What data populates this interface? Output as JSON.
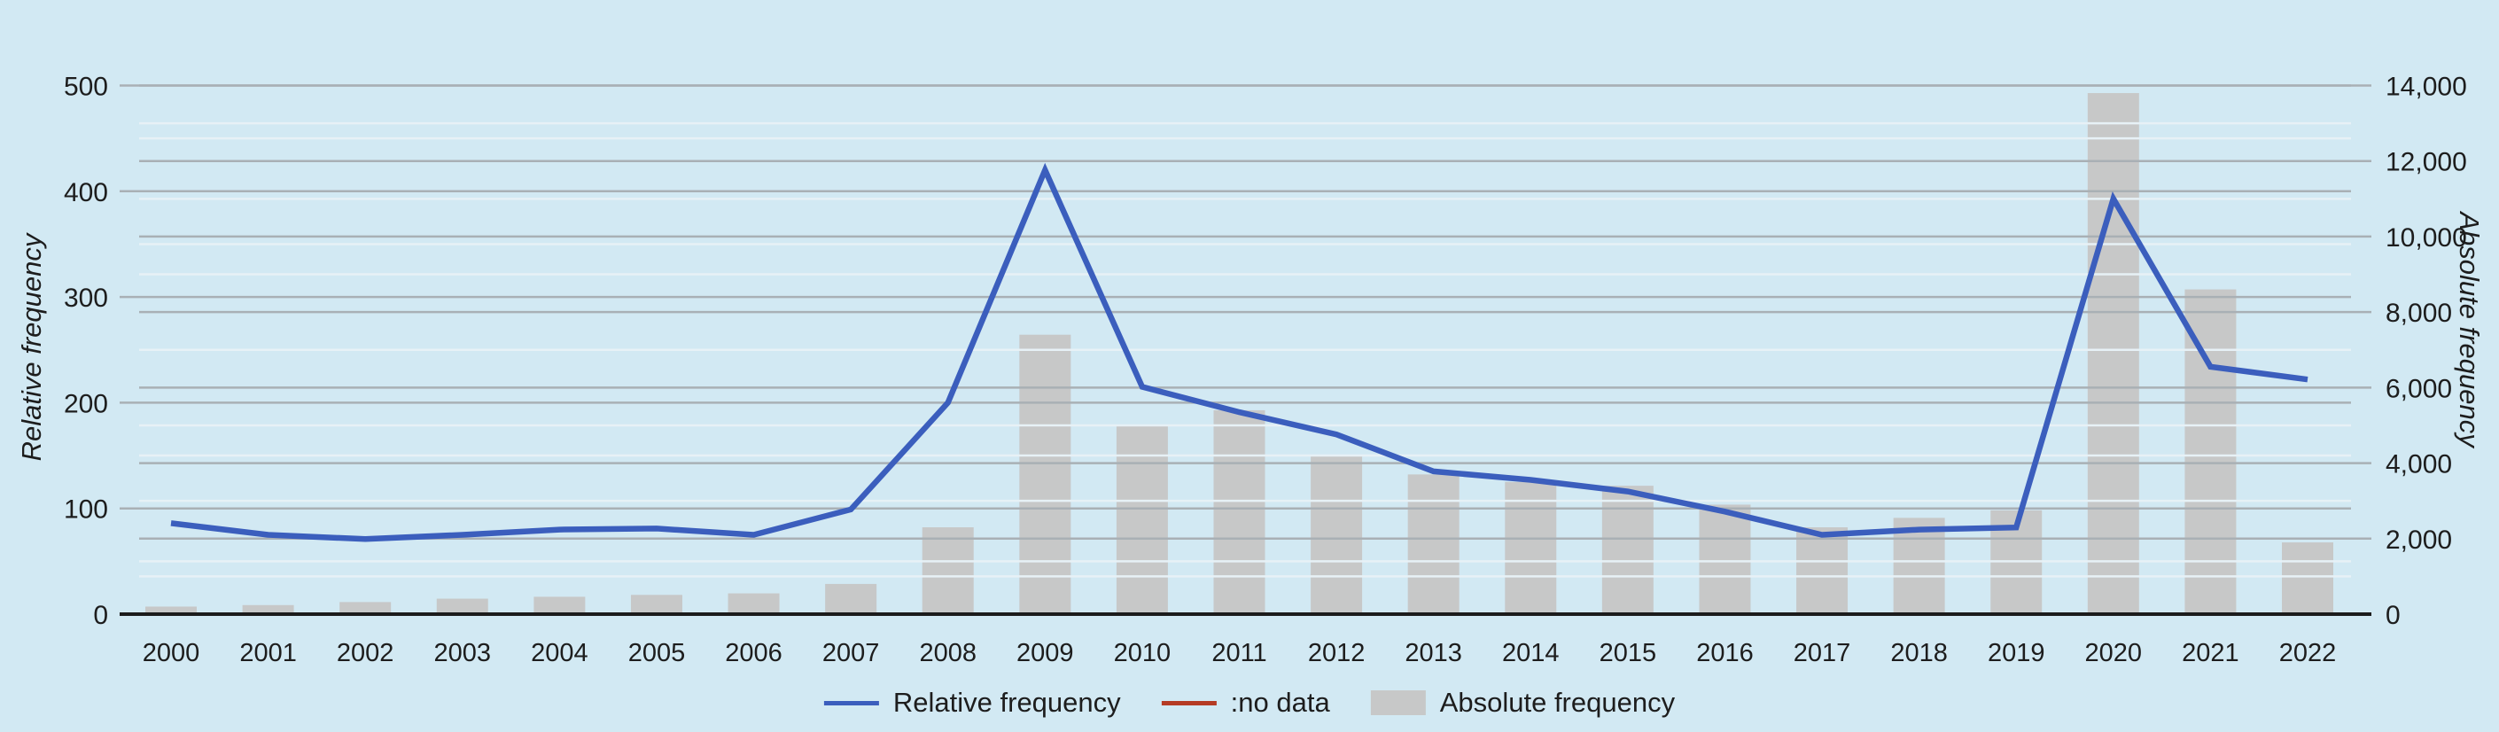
{
  "chart": {
    "background_color": "#d2e9f3",
    "axis_line_color": "#1c1c1c",
    "text_color": "#1d1d1d",
    "grid_major_color": "#a9b0b5",
    "grid_minor_color": "#e7f1f6",
    "tick_color": "#8f979c"
  },
  "chart_data": {
    "type": "combo",
    "categories": [
      "2000",
      "2001",
      "2002",
      "2003",
      "2004",
      "2005",
      "2006",
      "2007",
      "2008",
      "2009",
      "2010",
      "2011",
      "2012",
      "2013",
      "2014",
      "2015",
      "2016",
      "2017",
      "2018",
      "2019",
      "2020",
      "2021",
      "2022"
    ],
    "series": [
      {
        "name": "Relative frequency",
        "type": "line",
        "axis": "left",
        "color": "#3b5ebd",
        "values": [
          86,
          75,
          71,
          75,
          80,
          81,
          75,
          99,
          200,
          420,
          215,
          191,
          170,
          135,
          127,
          116,
          97,
          75,
          80,
          82,
          393,
          234,
          222
        ]
      },
      {
        "name": "Absolute frequency",
        "type": "bar",
        "axis": "right",
        "color": "#c7c8c8",
        "values": [
          200,
          240,
          320,
          410,
          460,
          510,
          550,
          800,
          2300,
          7400,
          5000,
          5400,
          4200,
          3700,
          3500,
          3400,
          2900,
          2300,
          2550,
          2750,
          13800,
          8600,
          1900
        ]
      }
    ],
    "left_axis": {
      "title": "Relative frequency",
      "min": 0,
      "max": 500,
      "major_step": 100,
      "minor_step": 50,
      "tick_labels": [
        "0",
        "100",
        "200",
        "300",
        "400",
        "500"
      ]
    },
    "right_axis": {
      "title": "Absolute frequency",
      "min": 0,
      "max": 14000,
      "major_step": 2000,
      "minor_step": 1000,
      "tick_labels": [
        "0",
        "2,000",
        "4,000",
        "6,000",
        "8,000",
        "10,000",
        "12,000",
        "14,000"
      ]
    },
    "legend": [
      {
        "label": "Relative frequency",
        "swatch": "line",
        "color": "#3b5ebd"
      },
      {
        "label": ":no data",
        "swatch": "line",
        "color": "#b53b24"
      },
      {
        "label": "Absolute frequency",
        "swatch": "rect",
        "color": "#c7c8c8"
      }
    ],
    "grid": {
      "horizontal": true,
      "vertical": false
    },
    "legend_position": "bottom-center",
    "title": "",
    "xlabel": ""
  }
}
